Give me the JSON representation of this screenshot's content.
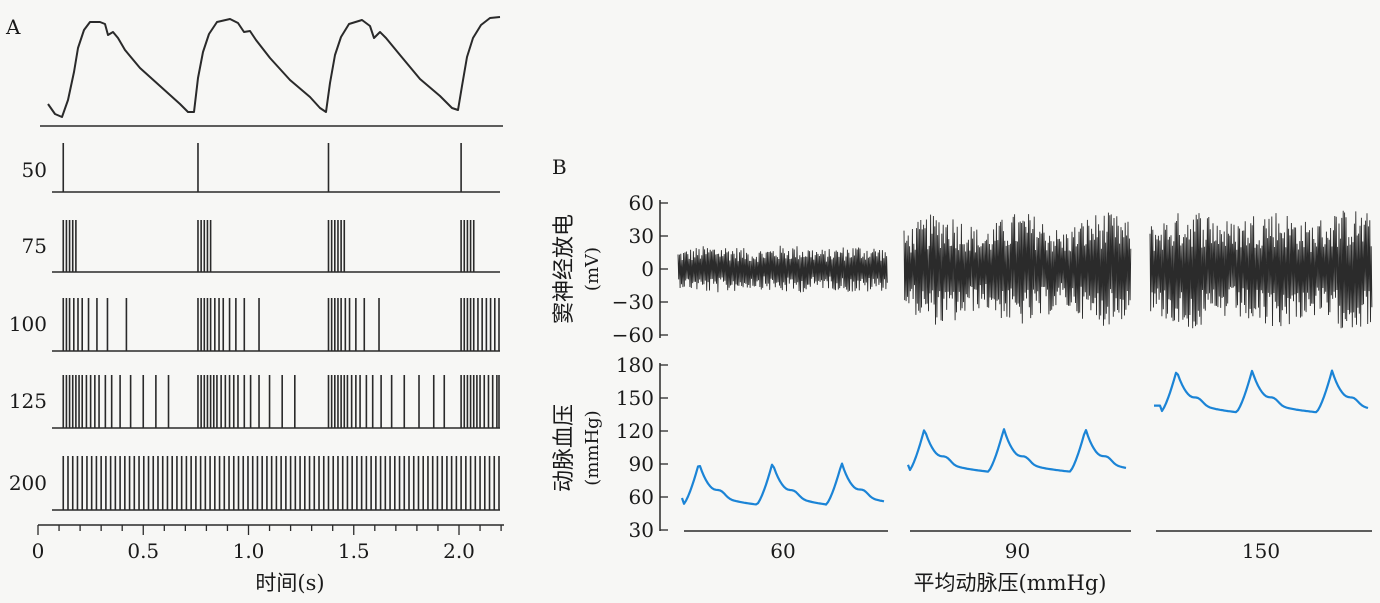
{
  "chart_data": [
    {
      "type": "line",
      "panel": "A",
      "panel_label": "A",
      "xlabel": "时间(s)",
      "xlim": [
        0,
        2.2
      ],
      "xticks": [
        0,
        0.5,
        1.0,
        1.5,
        2.0
      ],
      "xtick_labels": [
        "0",
        "0.5",
        "1.0",
        "1.5",
        "2.0"
      ],
      "pressure_peak_times": [
        0.12,
        0.76,
        1.38,
        2.01
      ],
      "rows": [
        {
          "label": "50",
          "spike_times": [
            0.12,
            0.76,
            1.38,
            2.01
          ]
        },
        {
          "label": "75",
          "spike_times": [
            0.12,
            0.135,
            0.15,
            0.165,
            0.18,
            0.76,
            0.775,
            0.79,
            0.805,
            0.82,
            1.38,
            1.395,
            1.41,
            1.425,
            1.44,
            1.455,
            2.01,
            2.025,
            2.04,
            2.055,
            2.07
          ]
        },
        {
          "label": "100",
          "spike_times": [
            0.12,
            0.135,
            0.15,
            0.17,
            0.19,
            0.21,
            0.24,
            0.28,
            0.33,
            0.42,
            0.76,
            0.775,
            0.79,
            0.805,
            0.82,
            0.84,
            0.86,
            0.88,
            0.91,
            0.94,
            0.98,
            1.05,
            1.38,
            1.395,
            1.41,
            1.425,
            1.44,
            1.46,
            1.48,
            1.51,
            1.55,
            1.62,
            2.01,
            2.025,
            2.04,
            2.055,
            2.07,
            2.09,
            2.11,
            2.13,
            2.15,
            2.17,
            2.19
          ]
        },
        {
          "label": "125",
          "spike_times": [
            0.12,
            0.135,
            0.15,
            0.165,
            0.18,
            0.195,
            0.21,
            0.23,
            0.25,
            0.27,
            0.29,
            0.32,
            0.35,
            0.39,
            0.44,
            0.5,
            0.56,
            0.62,
            0.76,
            0.775,
            0.79,
            0.805,
            0.82,
            0.835,
            0.85,
            0.87,
            0.89,
            0.91,
            0.93,
            0.95,
            0.98,
            1.01,
            1.05,
            1.1,
            1.16,
            1.22,
            1.38,
            1.395,
            1.41,
            1.425,
            1.44,
            1.455,
            1.47,
            1.49,
            1.51,
            1.53,
            1.56,
            1.59,
            1.63,
            1.68,
            1.74,
            1.81,
            1.88,
            1.93,
            2.01,
            2.025,
            2.04,
            2.055,
            2.07,
            2.085,
            2.1,
            2.12,
            2.14,
            2.16,
            2.18,
            2.19
          ]
        },
        {
          "label": "200",
          "spike_times": "regular train, ~23 ms spacing, 0.12–2.19 s"
        }
      ]
    },
    {
      "type": "line",
      "panel": "B",
      "panel_label": "B",
      "xlabel": "平均动脉压(mmHg)",
      "groups": [
        "60",
        "90",
        "150"
      ],
      "nerve_trace": {
        "ylabel": "窦神经放电",
        "yunit": "(mV)",
        "ylim": [
          -60,
          60
        ],
        "yticks": [
          "60",
          "30",
          "0",
          "−30",
          "−60"
        ],
        "amplitude_mV": [
          [
            14,
            22
          ],
          [
            25,
            52
          ],
          [
            35,
            55
          ]
        ]
      },
      "pressure_trace": {
        "ylabel": "动脉血压",
        "yunit": "(mmHg)",
        "ylim": [
          30,
          180
        ],
        "yticks": [
          "180",
          "150",
          "120",
          "90",
          "60",
          "30"
        ],
        "line_color": "#1b84d6",
        "series": [
          {
            "group": "60",
            "systolic": 91,
            "diastolic": 53,
            "pulses": 3
          },
          {
            "group": "90",
            "systolic": 122,
            "diastolic": 83,
            "pulses": 3
          },
          {
            "group": "150",
            "systolic": 175,
            "diastolic": 137,
            "pulses": 3
          }
        ]
      }
    }
  ]
}
